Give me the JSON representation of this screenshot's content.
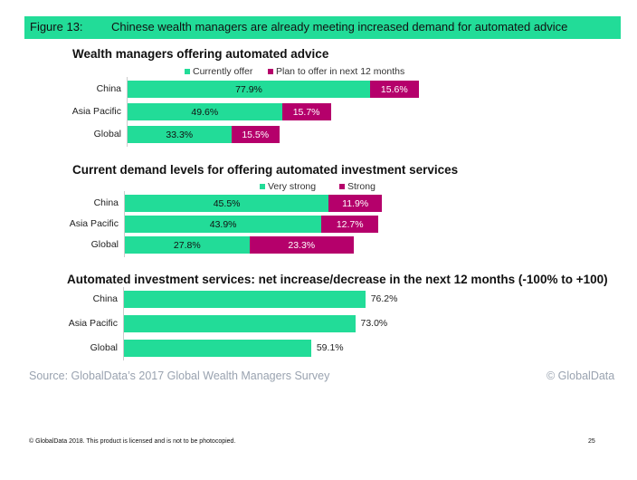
{
  "figure": {
    "number": "Figure 13:",
    "title": "Chinese wealth managers are already meeting increased demand for automated advice"
  },
  "colors": {
    "green": "#22dc98",
    "magenta": "#b5006b",
    "header": "#22dc98"
  },
  "chart_data": [
    {
      "type": "bar",
      "orientation": "horizontal",
      "stacked": true,
      "title": "Wealth managers offering automated advice",
      "categories": [
        "China",
        "Asia Pacific",
        "Global"
      ],
      "series": [
        {
          "name": "Currently offer",
          "values": [
            77.9,
            49.6,
            33.3
          ],
          "labels": [
            "77.9%",
            "49.6%",
            "33.3%"
          ]
        },
        {
          "name": "Plan to offer in next 12 months",
          "values": [
            15.6,
            15.7,
            15.5
          ],
          "labels": [
            "15.6%",
            "15.7%",
            "15.5%"
          ]
        }
      ],
      "legend": "top"
    },
    {
      "type": "bar",
      "orientation": "horizontal",
      "stacked": true,
      "title": "Current demand levels for offering automated investment services",
      "categories": [
        "China",
        "Asia Pacific",
        "Global"
      ],
      "series": [
        {
          "name": "Very strong",
          "values": [
            45.5,
            43.9,
            27.8
          ],
          "labels": [
            "45.5%",
            "43.9%",
            "27.8%"
          ]
        },
        {
          "name": "Strong",
          "values": [
            11.9,
            12.7,
            23.3
          ],
          "labels": [
            "11.9%",
            "12.7%",
            "23.3%"
          ]
        }
      ],
      "legend": "top"
    },
    {
      "type": "bar",
      "orientation": "horizontal",
      "stacked": false,
      "title": "Automated investment services: net increase/decrease in the next 12 months  (-100% to +100)",
      "categories": [
        "China",
        "Asia Pacific",
        "Global"
      ],
      "series": [
        {
          "values": [
            76.2,
            73.0,
            59.1
          ],
          "labels": [
            "76.2%",
            "73.0%",
            "59.1%"
          ]
        }
      ]
    }
  ],
  "source": "Source: GlobalData’s 2017 Global Wealth Managers Survey",
  "copyright": "© GlobalData",
  "footer": "© GlobalData 2018. This product is licensed and is not to be photocopied.",
  "page_number": "25"
}
